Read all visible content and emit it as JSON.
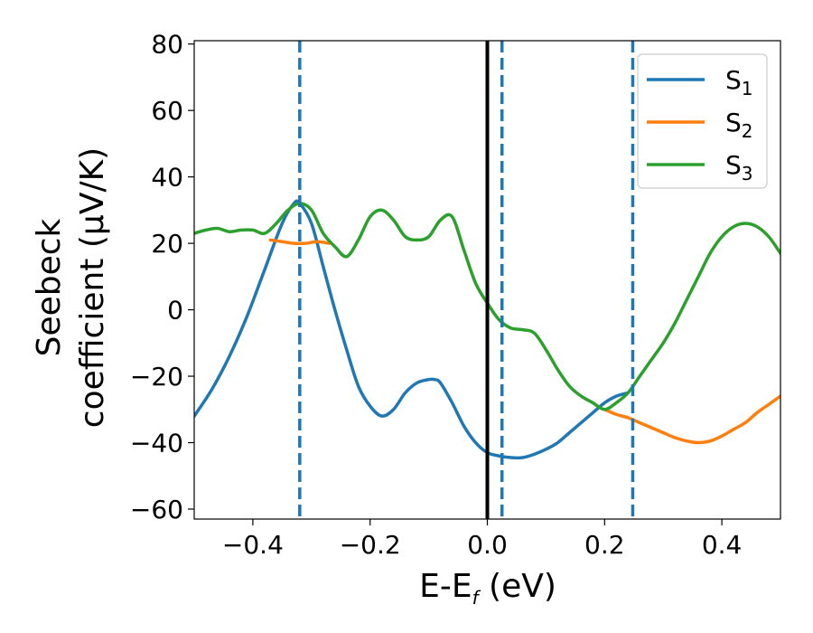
{
  "chart_data": {
    "type": "line",
    "xlabel_main": "E-E",
    "xlabel_sub": "f",
    "xlabel_unit": " (eV)",
    "ylabel_line1": "Seebeck",
    "ylabel_line2": "coefficient  (μV/K)",
    "xlim": [
      -0.5,
      0.5
    ],
    "ylim": [
      -63,
      81
    ],
    "xticks": [
      -0.4,
      -0.2,
      0.0,
      0.2,
      0.4
    ],
    "xtick_labels": [
      "−0.4",
      "−0.2",
      "0.0",
      "0.2",
      "0.4"
    ],
    "yticks": [
      80,
      60,
      40,
      20,
      0,
      -20,
      -40,
      -60
    ],
    "ytick_labels": [
      "80",
      "60",
      "40",
      "20",
      "0",
      "−20",
      "−40",
      "−60"
    ],
    "legend": {
      "placement": "top-right"
    },
    "series": [
      {
        "name_main": "S",
        "name_sub": "1",
        "color": "#1f77b4",
        "x": [
          -0.5,
          -0.47,
          -0.44,
          -0.41,
          -0.38,
          -0.35,
          -0.33,
          -0.32,
          -0.3,
          -0.28,
          -0.26,
          -0.24,
          -0.22,
          -0.2,
          -0.18,
          -0.16,
          -0.14,
          -0.12,
          -0.1,
          -0.09,
          -0.08,
          -0.06,
          -0.04,
          -0.02,
          0.0,
          0.02,
          0.04,
          0.06,
          0.08,
          0.1,
          0.12,
          0.14,
          0.16,
          0.18,
          0.2,
          0.22,
          0.24
        ],
        "y": [
          -32,
          -24,
          -14,
          -2,
          12,
          26,
          32,
          32,
          26,
          13,
          0,
          -12,
          -23,
          -29,
          -32,
          -30,
          -25,
          -22,
          -21,
          -21,
          -22,
          -28,
          -35,
          -40,
          -43,
          -44,
          -44.5,
          -44.5,
          -43.5,
          -42,
          -40,
          -37,
          -34,
          -31,
          -28,
          -26,
          -25
        ]
      },
      {
        "name_main": "S",
        "name_sub": "2",
        "color": "#ff7f0e",
        "x": [
          -0.37,
          -0.35,
          -0.33,
          -0.31,
          -0.29,
          -0.27,
          0.2,
          0.22,
          0.24,
          0.26,
          0.28,
          0.3,
          0.32,
          0.34,
          0.36,
          0.38,
          0.4,
          0.42,
          0.44,
          0.46,
          0.48,
          0.5
        ],
        "y": [
          21,
          20.5,
          20,
          20,
          20.5,
          20,
          -30,
          -31.5,
          -32.5,
          -34,
          -35.5,
          -37,
          -38.5,
          -39.5,
          -40,
          -39.5,
          -38,
          -36,
          -34,
          -31,
          -28.5,
          -26
        ]
      },
      {
        "name_main": "S",
        "name_sub": "3",
        "color": "#2ca02c",
        "x": [
          -0.5,
          -0.48,
          -0.46,
          -0.44,
          -0.42,
          -0.4,
          -0.38,
          -0.36,
          -0.34,
          -0.32,
          -0.3,
          -0.28,
          -0.26,
          -0.24,
          -0.22,
          -0.2,
          -0.18,
          -0.16,
          -0.14,
          -0.12,
          -0.1,
          -0.08,
          -0.06,
          -0.04,
          -0.02,
          0.0,
          0.02,
          0.04,
          0.06,
          0.08,
          0.1,
          0.12,
          0.14,
          0.16,
          0.18,
          0.2,
          0.22,
          0.24,
          0.26,
          0.28,
          0.3,
          0.32,
          0.34,
          0.36,
          0.38,
          0.4,
          0.42,
          0.44,
          0.46,
          0.48,
          0.5
        ],
        "y": [
          23,
          24,
          24.5,
          23.5,
          24,
          24,
          23,
          26,
          30,
          32,
          30,
          23,
          19,
          16,
          21,
          28,
          30,
          27,
          22,
          21,
          22,
          27,
          28,
          18,
          8,
          2,
          -3,
          -5.5,
          -6,
          -7,
          -12,
          -18,
          -23,
          -26,
          -28,
          -30,
          -28,
          -25,
          -20,
          -15,
          -10,
          -4,
          3,
          10,
          17,
          22,
          25,
          26,
          25,
          22,
          17
        ]
      }
    ],
    "vlines": [
      {
        "x": -0.32,
        "style": "dashed",
        "color": "#1f77b4"
      },
      {
        "x": 0.0,
        "style": "solid",
        "color": "#000000"
      },
      {
        "x": 0.025,
        "style": "dashed",
        "color": "#1f77b4"
      },
      {
        "x": 0.248,
        "style": "dashed",
        "color": "#1f77b4"
      }
    ]
  }
}
